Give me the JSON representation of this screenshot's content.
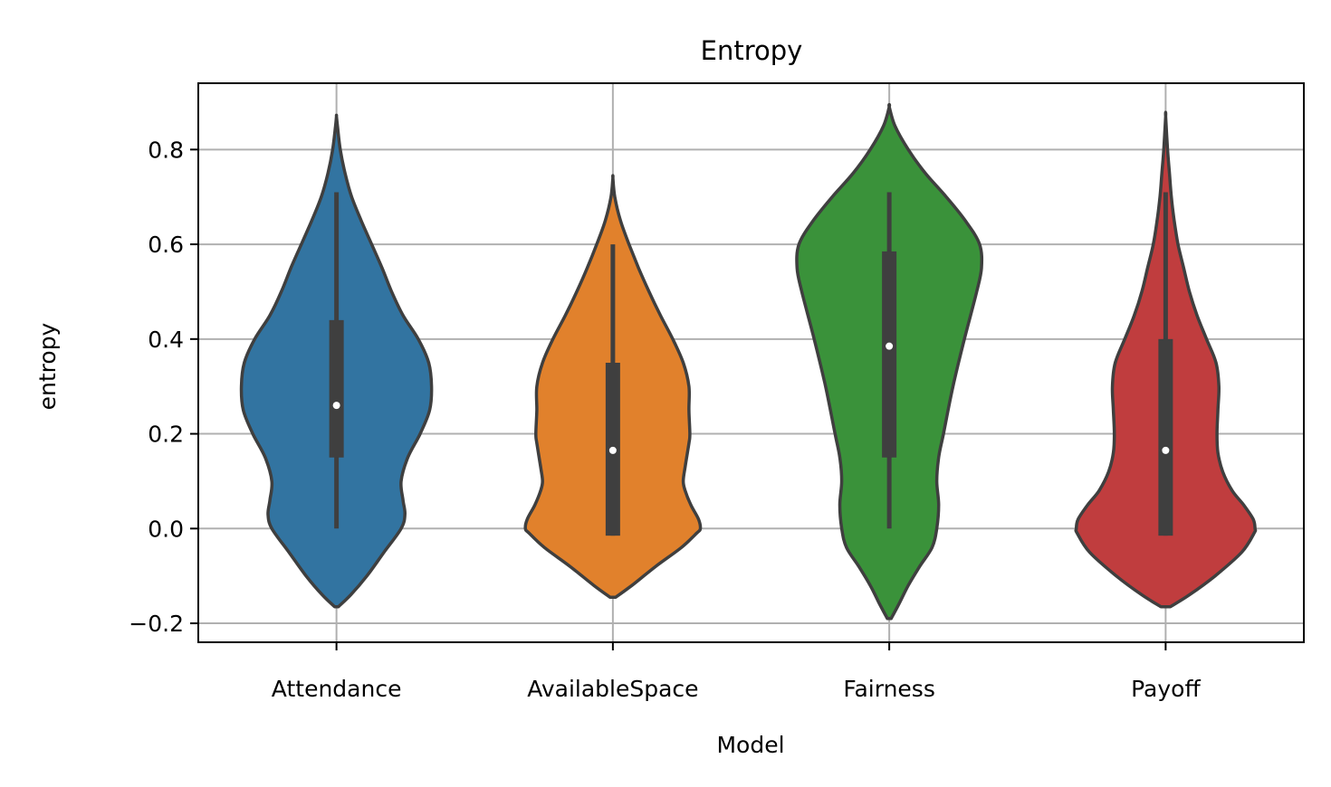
{
  "chart_data": {
    "type": "violin",
    "title": "Entropy",
    "xlabel": "Model",
    "ylabel": "entropy",
    "ylim": [
      -0.24,
      0.94
    ],
    "yticks": [
      -0.2,
      0.0,
      0.2,
      0.4,
      0.6,
      0.8
    ],
    "ytick_labels": [
      "−0.2",
      "0.0",
      "0.2",
      "0.4",
      "0.6",
      "0.8"
    ],
    "grid": true,
    "categories": [
      "Attendance",
      "AvailableSpace",
      "Fairness",
      "Payoff"
    ],
    "colors": [
      "#3274a1",
      "#e1812c",
      "#3a923a",
      "#c03d3e"
    ],
    "series": [
      {
        "median": 0.26,
        "q1": 0.15,
        "q3": 0.44,
        "whisker_low": 0.0,
        "whisker_high": 0.71,
        "profile": [
          [
            -0.165,
            0.02
          ],
          [
            -0.14,
            0.15
          ],
          [
            -0.1,
            0.32
          ],
          [
            -0.05,
            0.5
          ],
          [
            0.0,
            0.68
          ],
          [
            0.03,
            0.72
          ],
          [
            0.06,
            0.7
          ],
          [
            0.1,
            0.68
          ],
          [
            0.15,
            0.75
          ],
          [
            0.2,
            0.88
          ],
          [
            0.25,
            0.98
          ],
          [
            0.3,
            1.0
          ],
          [
            0.35,
            0.97
          ],
          [
            0.4,
            0.86
          ],
          [
            0.45,
            0.7
          ],
          [
            0.5,
            0.58
          ],
          [
            0.55,
            0.48
          ],
          [
            0.6,
            0.37
          ],
          [
            0.65,
            0.26
          ],
          [
            0.7,
            0.16
          ],
          [
            0.75,
            0.09
          ],
          [
            0.8,
            0.04
          ],
          [
            0.85,
            0.01
          ],
          [
            0.87,
            0.0
          ]
        ]
      },
      {
        "median": 0.165,
        "q1": -0.015,
        "q3": 0.35,
        "whisker_low": -0.015,
        "whisker_high": 0.6,
        "profile": [
          [
            -0.145,
            0.03
          ],
          [
            -0.12,
            0.2
          ],
          [
            -0.08,
            0.45
          ],
          [
            -0.04,
            0.72
          ],
          [
            -0.01,
            0.88
          ],
          [
            0.0,
            0.92
          ],
          [
            0.02,
            0.9
          ],
          [
            0.05,
            0.82
          ],
          [
            0.08,
            0.76
          ],
          [
            0.1,
            0.74
          ],
          [
            0.13,
            0.76
          ],
          [
            0.18,
            0.8
          ],
          [
            0.2,
            0.81
          ],
          [
            0.25,
            0.8
          ],
          [
            0.3,
            0.8
          ],
          [
            0.35,
            0.74
          ],
          [
            0.4,
            0.63
          ],
          [
            0.45,
            0.5
          ],
          [
            0.5,
            0.38
          ],
          [
            0.55,
            0.27
          ],
          [
            0.6,
            0.17
          ],
          [
            0.65,
            0.08
          ],
          [
            0.7,
            0.02
          ],
          [
            0.74,
            0.0
          ]
        ]
      },
      {
        "median": 0.385,
        "q1": 0.15,
        "q3": 0.585,
        "whisker_low": 0.0,
        "whisker_high": 0.71,
        "profile": [
          [
            -0.19,
            0.02
          ],
          [
            -0.16,
            0.1
          ],
          [
            -0.12,
            0.2
          ],
          [
            -0.08,
            0.32
          ],
          [
            -0.04,
            0.45
          ],
          [
            0.0,
            0.5
          ],
          [
            0.05,
            0.52
          ],
          [
            0.1,
            0.5
          ],
          [
            0.15,
            0.52
          ],
          [
            0.2,
            0.57
          ],
          [
            0.3,
            0.67
          ],
          [
            0.4,
            0.79
          ],
          [
            0.5,
            0.92
          ],
          [
            0.55,
            0.97
          ],
          [
            0.6,
            0.95
          ],
          [
            0.65,
            0.8
          ],
          [
            0.7,
            0.6
          ],
          [
            0.75,
            0.38
          ],
          [
            0.8,
            0.2
          ],
          [
            0.85,
            0.06
          ],
          [
            0.89,
            0.0
          ]
        ]
      },
      {
        "median": 0.165,
        "q1": -0.015,
        "q3": 0.4,
        "whisker_low": -0.015,
        "whisker_high": 0.71,
        "profile": [
          [
            -0.165,
            0.05
          ],
          [
            -0.14,
            0.25
          ],
          [
            -0.1,
            0.52
          ],
          [
            -0.05,
            0.8
          ],
          [
            -0.01,
            0.93
          ],
          [
            0.0,
            0.94
          ],
          [
            0.02,
            0.92
          ],
          [
            0.05,
            0.82
          ],
          [
            0.08,
            0.7
          ],
          [
            0.12,
            0.6
          ],
          [
            0.16,
            0.55
          ],
          [
            0.2,
            0.54
          ],
          [
            0.25,
            0.55
          ],
          [
            0.3,
            0.56
          ],
          [
            0.35,
            0.53
          ],
          [
            0.4,
            0.43
          ],
          [
            0.45,
            0.33
          ],
          [
            0.5,
            0.25
          ],
          [
            0.55,
            0.19
          ],
          [
            0.6,
            0.13
          ],
          [
            0.65,
            0.09
          ],
          [
            0.7,
            0.06
          ],
          [
            0.75,
            0.04
          ],
          [
            0.8,
            0.02
          ],
          [
            0.87,
            0.0
          ]
        ]
      }
    ]
  }
}
